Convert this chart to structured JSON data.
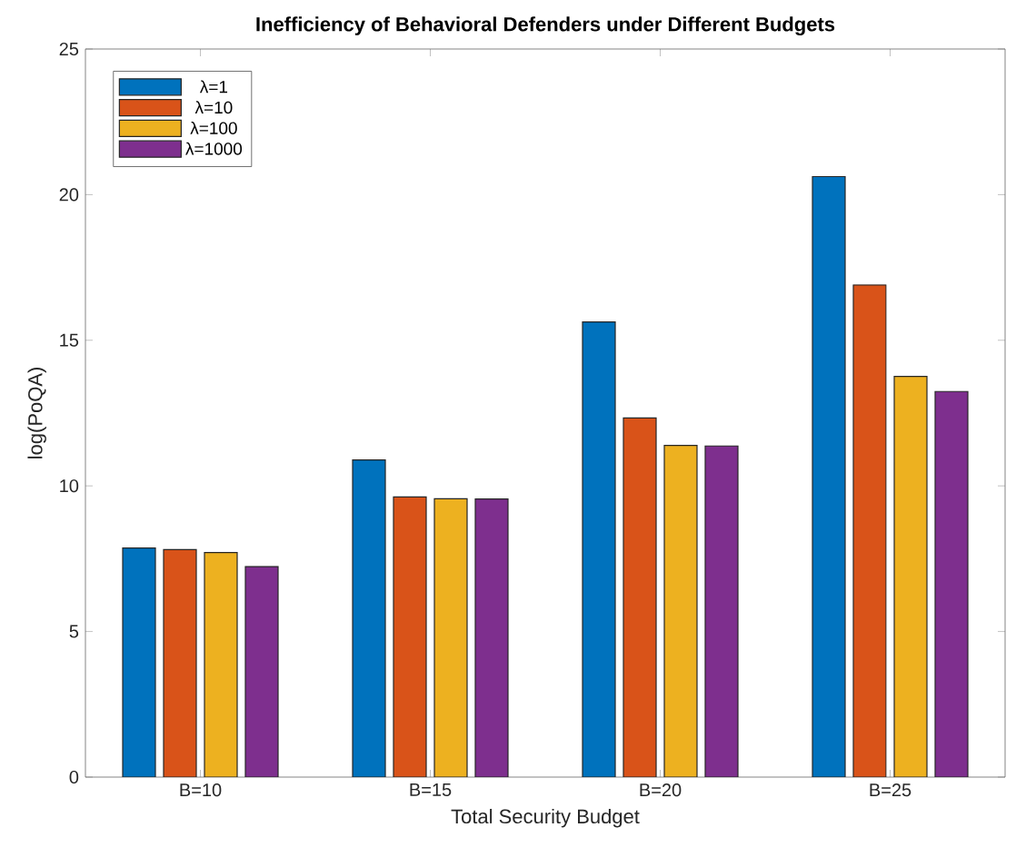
{
  "chart_data": {
    "type": "bar",
    "title": "Inefficiency of Behavioral Defenders under Different Budgets",
    "xlabel": "Total Security Budget",
    "ylabel": "log(PoQA)",
    "categories": [
      "B=10",
      "B=15",
      "B=20",
      "B=25"
    ],
    "series": [
      {
        "name": "λ=1",
        "color": "#0072bd",
        "values": [
          7.87,
          10.89,
          15.63,
          20.62
        ]
      },
      {
        "name": "λ=10",
        "color": "#d95319",
        "values": [
          7.81,
          9.62,
          12.33,
          16.9
        ]
      },
      {
        "name": "λ=100",
        "color": "#edb120",
        "values": [
          7.71,
          9.56,
          11.39,
          13.76
        ]
      },
      {
        "name": "λ=1000",
        "color": "#7e2f8e",
        "values": [
          7.23,
          9.55,
          11.37,
          13.24
        ]
      }
    ],
    "ylim": [
      0,
      25
    ],
    "yticks": [
      0,
      5,
      10,
      15,
      20,
      25
    ],
    "legend": "top left",
    "grid": false
  }
}
